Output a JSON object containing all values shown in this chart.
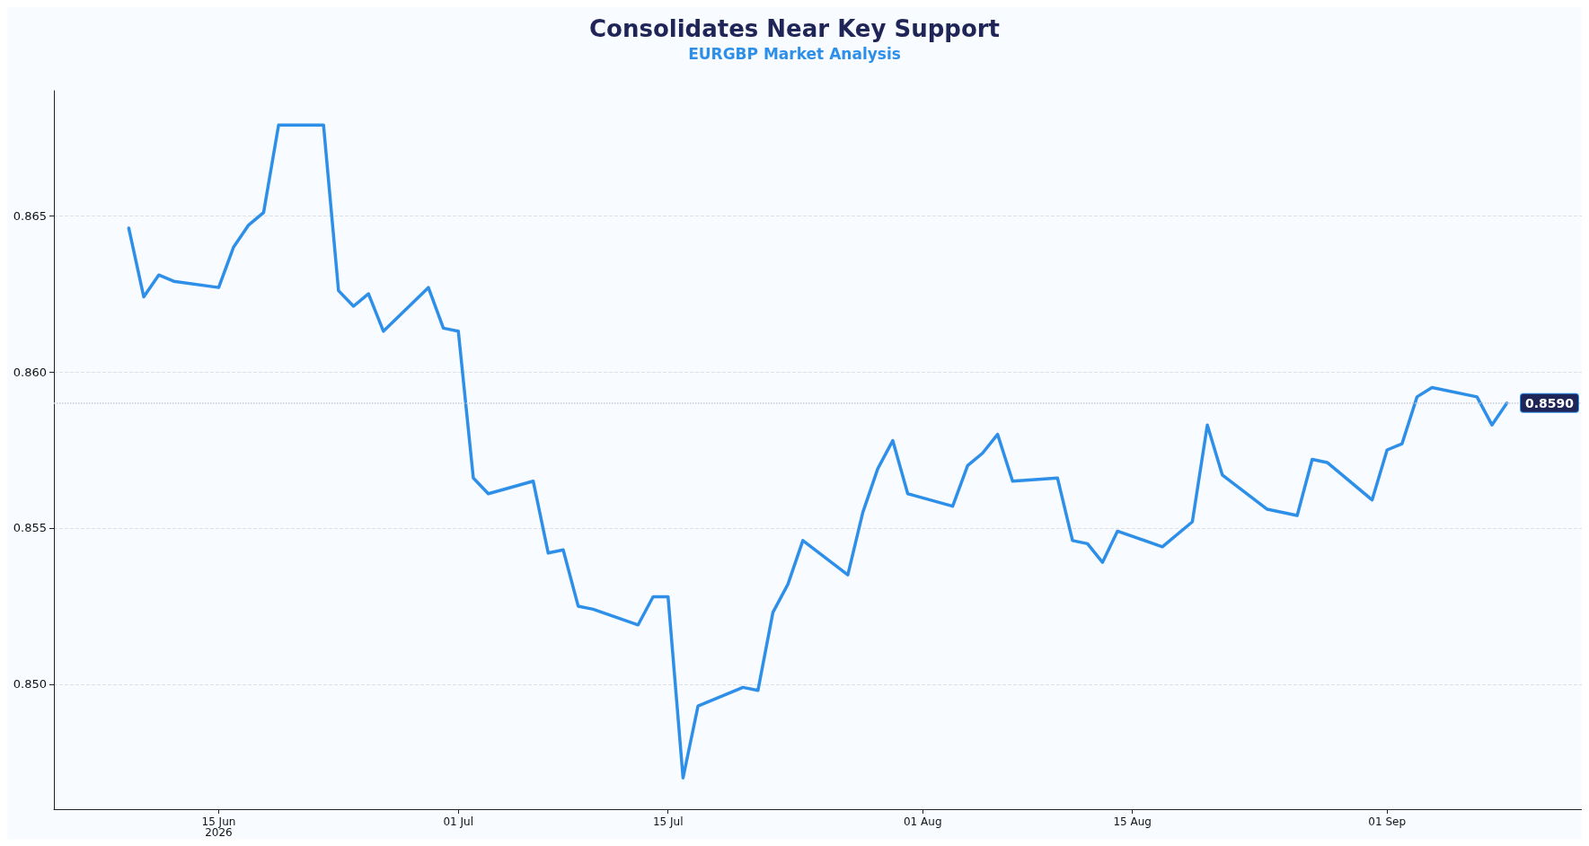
{
  "chart_data": {
    "type": "line",
    "title": "Consolidates Near Key Support",
    "subtitle": "EURGBP Market Analysis",
    "x": [
      "2026-06-09",
      "2026-06-10",
      "2026-06-11",
      "2026-06-12",
      "2026-06-15",
      "2026-06-16",
      "2026-06-17",
      "2026-06-18",
      "2026-06-19",
      "2026-06-22",
      "2026-06-23",
      "2026-06-24",
      "2026-06-25",
      "2026-06-26",
      "2026-06-29",
      "2026-06-30",
      "2026-07-01",
      "2026-07-02",
      "2026-07-03",
      "2026-07-06",
      "2026-07-07",
      "2026-07-08",
      "2026-07-09",
      "2026-07-10",
      "2026-07-13",
      "2026-07-14",
      "2026-07-15",
      "2026-07-16",
      "2026-07-17",
      "2026-07-20",
      "2026-07-21",
      "2026-07-22",
      "2026-07-23",
      "2026-07-24",
      "2026-07-27",
      "2026-07-28",
      "2026-07-29",
      "2026-07-30",
      "2026-07-31",
      "2026-08-03",
      "2026-08-04",
      "2026-08-05",
      "2026-08-06",
      "2026-08-07",
      "2026-08-10",
      "2026-08-11",
      "2026-08-12",
      "2026-08-13",
      "2026-08-14",
      "2026-08-17",
      "2026-08-19",
      "2026-08-20",
      "2026-08-21",
      "2026-08-24",
      "2026-08-26",
      "2026-08-27",
      "2026-08-28",
      "2026-08-31",
      "2026-09-01",
      "2026-09-02",
      "2026-09-03",
      "2026-09-04",
      "2026-09-07",
      "2026-09-08",
      "2026-09-09"
    ],
    "series": [
      {
        "color": "#2e8fe8",
        "values": [
          0.8646,
          0.8624,
          0.8631,
          0.8629,
          0.8627,
          0.864,
          0.8647,
          0.8651,
          0.8679,
          0.8679,
          0.8626,
          0.8621,
          0.8625,
          0.8613,
          0.8627,
          0.8614,
          0.8613,
          0.8566,
          0.8561,
          0.8565,
          0.8542,
          0.8543,
          0.8525,
          0.8524,
          0.8519,
          0.8528,
          0.8528,
          0.847,
          0.8493,
          0.8499,
          0.8498,
          0.8523,
          0.8532,
          0.8546,
          0.8535,
          0.8555,
          0.8569,
          0.8578,
          0.8561,
          0.8557,
          0.857,
          0.8574,
          0.858,
          0.8565,
          0.8566,
          0.8546,
          0.8545,
          0.8539,
          0.8549,
          0.8544,
          0.8552,
          0.8583,
          0.8567,
          0.8556,
          0.8554,
          0.8572,
          0.8571,
          0.8559,
          0.8575,
          0.8577,
          0.8592,
          0.8595,
          0.8592,
          0.8583,
          0.859
        ]
      }
    ],
    "xlim": [
      "2026-06-04",
      "2026-09-14"
    ],
    "xticks": [
      {
        "value": "2026-06-15",
        "label": "15 Jun\n2026"
      },
      {
        "value": "2026-07-01",
        "label": "01 Jul"
      },
      {
        "value": "2026-07-15",
        "label": "15 Jul"
      },
      {
        "value": "2026-08-01",
        "label": "01 Aug"
      },
      {
        "value": "2026-08-15",
        "label": "15 Aug"
      },
      {
        "value": "2026-09-01",
        "label": "01 Sep"
      }
    ],
    "ylim": [
      0.846,
      0.869
    ],
    "yticks": [
      {
        "value": 0.85,
        "label": "0.850"
      },
      {
        "value": 0.855,
        "label": "0.855"
      },
      {
        "value": 0.86,
        "label": "0.860"
      },
      {
        "value": 0.865,
        "label": "0.865"
      }
    ],
    "ref_lines": [
      {
        "axis": "y",
        "value": 0.859,
        "label": "0.8590",
        "color": "#c8ccd4",
        "line_style": "dotted"
      }
    ],
    "grid": "y",
    "marker": "none",
    "line_style": "solid"
  }
}
